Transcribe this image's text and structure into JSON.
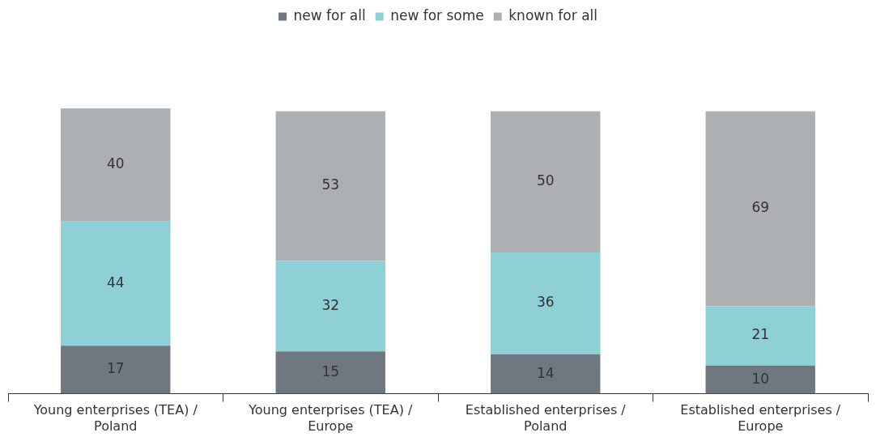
{
  "chart_data": {
    "type": "bar",
    "stacked": true,
    "data_labels": true,
    "legend": "top",
    "grid": false,
    "tick_labels": "x",
    "categories": [
      "Young enterprises (TEA) / Poland",
      "Young enterprises (TEA) / Europe",
      "Established enterprises / Poland",
      "Established enterprises / Europe"
    ],
    "series": [
      {
        "name": "new for all",
        "color": "#6f7780",
        "values": [
          17,
          15,
          14,
          10
        ]
      },
      {
        "name": "new for some",
        "color": "#8fcfd6",
        "values": [
          44,
          32,
          36,
          21
        ]
      },
      {
        "name": "known for all",
        "color": "#adb0b3",
        "values": [
          40,
          53,
          50,
          69
        ]
      }
    ]
  }
}
